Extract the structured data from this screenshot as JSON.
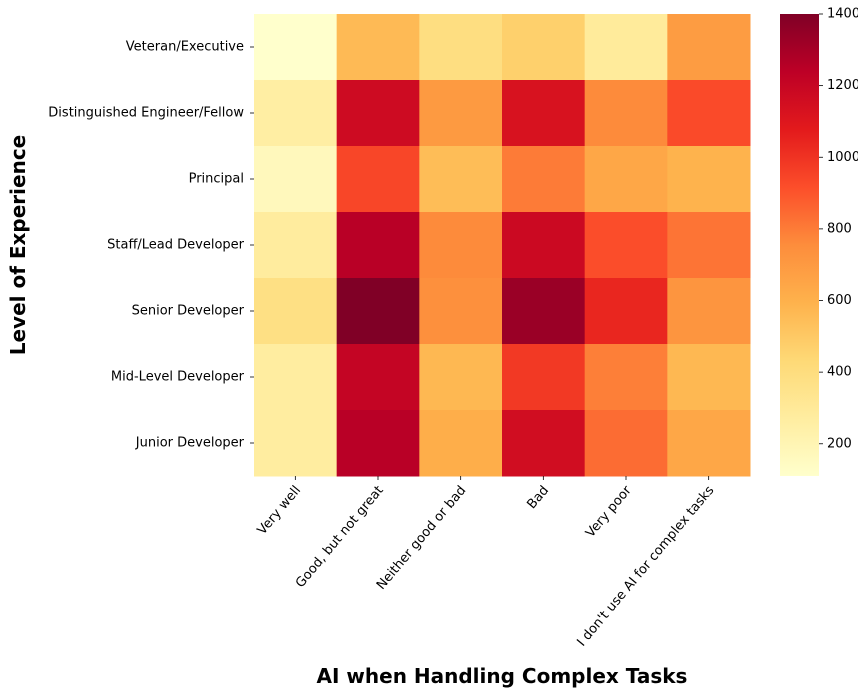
{
  "chart_data": {
    "type": "heatmap",
    "xlabel": "AI when Handling Complex Tasks",
    "ylabel": "Level of Experience",
    "x_categories": [
      "Very well",
      "Good, but not great",
      "Neither good or bad",
      "Bad",
      "Very poor",
      "I don't use AI for complex tasks"
    ],
    "y_categories": [
      "Veteran/Executive",
      "Distinguished Engineer/Fellow",
      "Principal",
      "Staff/Lead Developer",
      "Senior Developer",
      "Mid-Level Developer",
      "Junior Developer"
    ],
    "values": [
      [
        110,
        560,
        390,
        470,
        290,
        690
      ],
      [
        260,
        1170,
        700,
        1130,
        760,
        930
      ],
      [
        170,
        940,
        550,
        800,
        640,
        590
      ],
      [
        280,
        1250,
        760,
        1180,
        920,
        820
      ],
      [
        380,
        1400,
        740,
        1330,
        1040,
        720
      ],
      [
        270,
        1210,
        570,
        980,
        790,
        570
      ],
      [
        270,
        1250,
        610,
        1160,
        840,
        640
      ]
    ],
    "colormap": "YlOrRd",
    "colorbar": {
      "min": 110,
      "max": 1400,
      "ticks": [
        200,
        400,
        600,
        800,
        1000,
        1200,
        1400
      ]
    }
  }
}
